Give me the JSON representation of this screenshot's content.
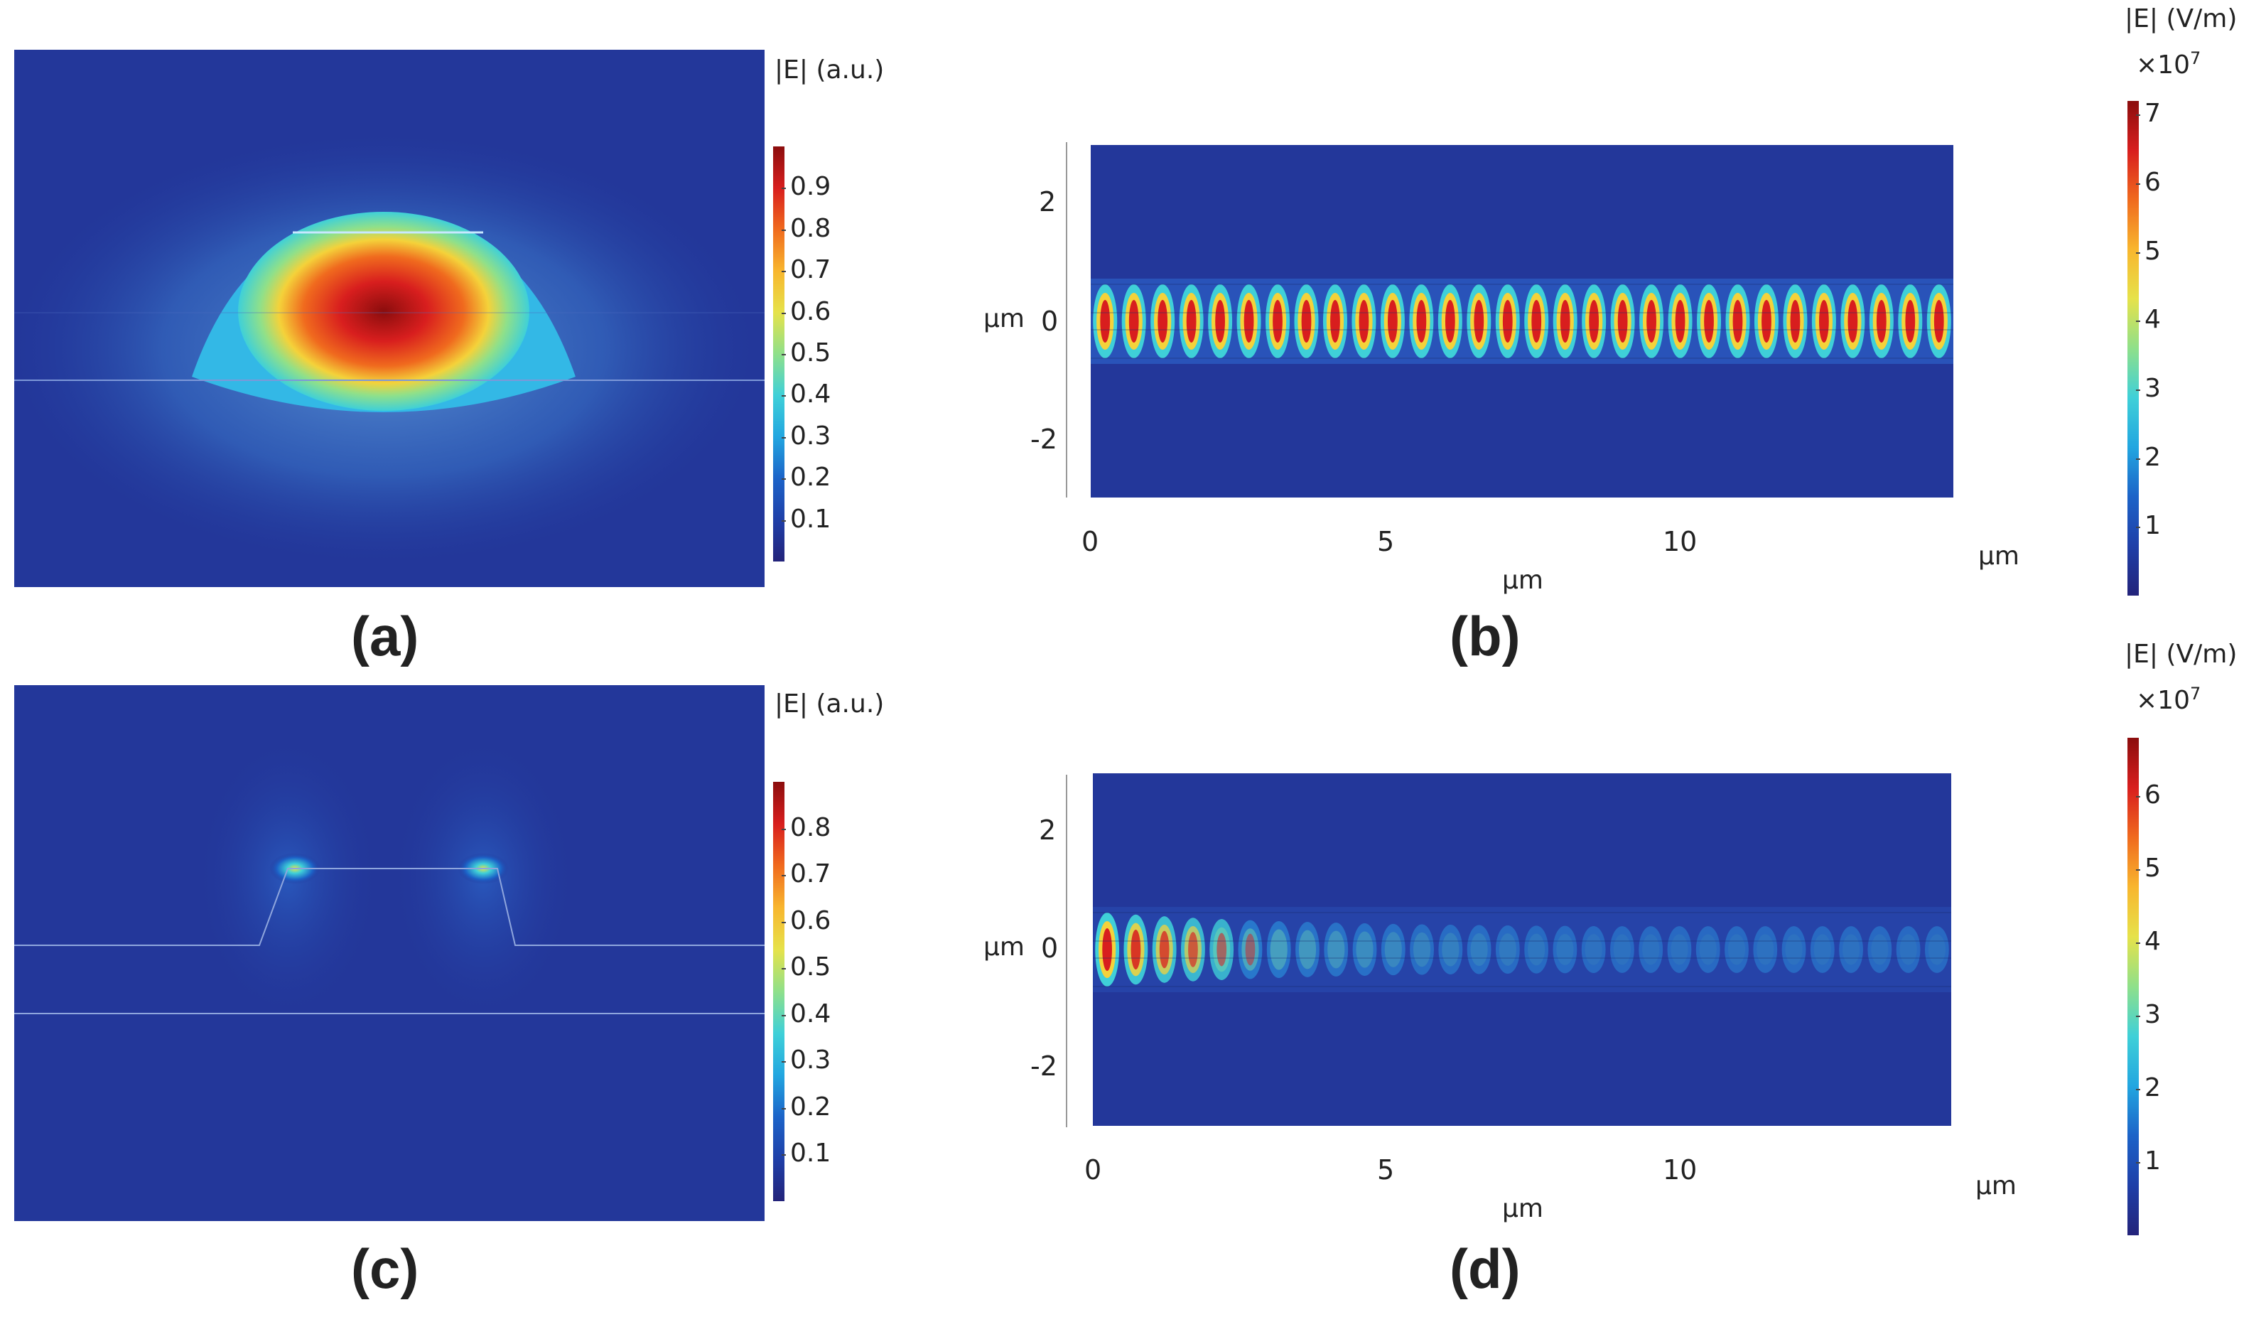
{
  "colors": {
    "background_field": "#1f3a93",
    "colormap": [
      "#23237a",
      "#1f3fa8",
      "#1c63c8",
      "#22a6e0",
      "#3fd0d8",
      "#8fe08a",
      "#e6e24a",
      "#f8b62e",
      "#f06a1e",
      "#d81e1e",
      "#8b0d0d"
    ]
  },
  "chart_data": [
    {
      "type": "heatmap",
      "panel": "(a)",
      "description_label": "(a)",
      "colorbar": {
        "label": "|E| (a.u.)",
        "ticks": [
          "0.1",
          "0.2",
          "0.3",
          "0.4",
          "0.5",
          "0.6",
          "0.7",
          "0.8",
          "0.9"
        ],
        "range": [
          0,
          1.0
        ]
      },
      "field": {
        "mode": "single-lobe",
        "peak": 1.0
      }
    },
    {
      "type": "heatmap",
      "panel": "(b)",
      "description_label": "(b)",
      "x_ticks": [
        "0",
        "5",
        "10"
      ],
      "x_unit": "µm",
      "x_label": "µm",
      "y_ticks": [
        "2",
        "0",
        "-2"
      ],
      "y_label": "µm",
      "xlim": [
        0,
        14.6
      ],
      "ylim": [
        -3,
        3
      ],
      "colorbar": {
        "label": "|E| (V/m)",
        "multiplier": "×10",
        "exponent": "7",
        "ticks": [
          "1",
          "2",
          "3",
          "4",
          "5",
          "6",
          "7"
        ],
        "range": [
          0,
          7.2
        ]
      },
      "field": {
        "mode": "uniform-propagation",
        "periods": 30
      }
    },
    {
      "type": "heatmap",
      "panel": "(c)",
      "description_label": "(c)",
      "colorbar": {
        "label": "|E| (a.u.)",
        "ticks": [
          "0.1",
          "0.2",
          "0.3",
          "0.4",
          "0.5",
          "0.6",
          "0.7",
          "0.8"
        ],
        "range": [
          0,
          0.9
        ]
      },
      "field": {
        "mode": "two-edge-hotspots",
        "peak": 0.9
      }
    },
    {
      "type": "heatmap",
      "panel": "(d)",
      "description_label": "(d)",
      "x_ticks": [
        "0",
        "5",
        "10"
      ],
      "x_unit": "µm",
      "x_label": "µm",
      "y_ticks": [
        "2",
        "0",
        "-2"
      ],
      "y_label": "µm",
      "xlim": [
        0,
        14.6
      ],
      "ylim": [
        -3,
        3
      ],
      "colorbar": {
        "label": "|E| (V/m)",
        "multiplier": "×10",
        "exponent": "7",
        "ticks": [
          "1",
          "2",
          "3",
          "4",
          "5",
          "6"
        ],
        "range": [
          0,
          6.8
        ]
      },
      "field": {
        "mode": "decaying-propagation",
        "periods": 30
      }
    }
  ]
}
